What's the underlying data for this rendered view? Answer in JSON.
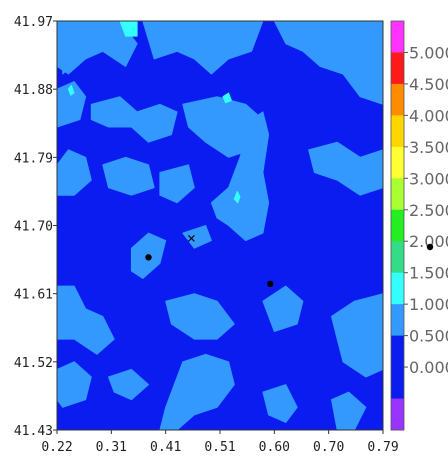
{
  "chart_data": {
    "type": "heatmap",
    "title": "",
    "xlabel": "",
    "ylabel": "",
    "xlim": [
      0.22,
      0.79
    ],
    "ylim": [
      41.43,
      41.97
    ],
    "x_ticks": [
      "0.22",
      "0.31",
      "0.41",
      "0.51",
      "0.60",
      "0.70",
      "0.79"
    ],
    "y_ticks": [
      "41.97",
      "41.88",
      "41.79",
      "41.70",
      "41.61",
      "41.52",
      "41.43"
    ],
    "background_level_color": "#0a1cf0",
    "colorbar": {
      "levels": [
        {
          "label": "5.000",
          "color": "#ff33ff"
        },
        {
          "label": "4.500",
          "color": "#ff1a1a"
        },
        {
          "label": "4.000",
          "color": "#ff8c00"
        },
        {
          "label": "3.500",
          "color": "#ffd700"
        },
        {
          "label": "3.000",
          "color": "#ffff33"
        },
        {
          "label": "2.500",
          "color": "#aaff33"
        },
        {
          "label": "2.000",
          "color": "#22ee22"
        },
        {
          "label": "1.500",
          "color": "#33dd88"
        },
        {
          "label": "1.000",
          "color": "#33ffff"
        },
        {
          "label": "0.500",
          "color": "#3399ff"
        },
        {
          "label": "0.000",
          "color": "#0a1cf0"
        }
      ],
      "bottom_color": "#9933ff",
      "top_color": "#ff33ff"
    },
    "contour_patches": [
      {
        "level": "0.500",
        "color": "#3399ff",
        "points": [
          [
            0.22,
            41.97
          ],
          [
            0.33,
            41.97
          ],
          [
            0.36,
            41.94
          ],
          [
            0.34,
            41.91
          ],
          [
            0.3,
            41.93
          ],
          [
            0.27,
            41.92
          ],
          [
            0.24,
            41.9
          ],
          [
            0.22,
            41.91
          ]
        ]
      },
      {
        "level": "0.500",
        "color": "#3399ff",
        "points": [
          [
            0.37,
            41.97
          ],
          [
            0.58,
            41.97
          ],
          [
            0.56,
            41.93
          ],
          [
            0.52,
            41.92
          ],
          [
            0.49,
            41.9
          ],
          [
            0.46,
            41.92
          ],
          [
            0.43,
            41.93
          ],
          [
            0.39,
            41.92
          ]
        ]
      },
      {
        "level": "0.500",
        "color": "#3399ff",
        "points": [
          [
            0.6,
            41.97
          ],
          [
            0.79,
            41.97
          ],
          [
            0.79,
            41.86
          ],
          [
            0.75,
            41.87
          ],
          [
            0.72,
            41.9
          ],
          [
            0.68,
            41.91
          ],
          [
            0.65,
            41.93
          ],
          [
            0.62,
            41.94
          ]
        ]
      },
      {
        "level": "0.500",
        "color": "#3399ff",
        "points": [
          [
            0.23,
            41.96
          ],
          [
            0.33,
            41.96
          ],
          [
            0.36,
            41.94
          ],
          [
            0.34,
            41.92
          ],
          [
            0.3,
            41.93
          ],
          [
            0.26,
            41.92
          ],
          [
            0.23,
            41.9
          ]
        ]
      },
      {
        "level": "0.500",
        "color": "#3399ff",
        "points": [
          [
            0.22,
            41.88
          ],
          [
            0.25,
            41.89
          ],
          [
            0.27,
            41.87
          ],
          [
            0.26,
            41.84
          ],
          [
            0.22,
            41.83
          ]
        ]
      },
      {
        "level": "0.500",
        "color": "#3399ff",
        "points": [
          [
            0.28,
            41.86
          ],
          [
            0.33,
            41.87
          ],
          [
            0.36,
            41.85
          ],
          [
            0.4,
            41.86
          ],
          [
            0.43,
            41.85
          ],
          [
            0.42,
            41.82
          ],
          [
            0.38,
            41.81
          ],
          [
            0.35,
            41.83
          ],
          [
            0.31,
            41.83
          ],
          [
            0.28,
            41.84
          ]
        ]
      },
      {
        "level": "0.500",
        "color": "#3399ff",
        "points": [
          [
            0.44,
            41.86
          ],
          [
            0.5,
            41.87
          ],
          [
            0.55,
            41.86
          ],
          [
            0.58,
            41.84
          ],
          [
            0.56,
            41.8
          ],
          [
            0.52,
            41.79
          ],
          [
            0.48,
            41.81
          ],
          [
            0.45,
            41.83
          ]
        ]
      },
      {
        "level": "0.500",
        "color": "#3399ff",
        "points": [
          [
            0.22,
            41.78
          ],
          [
            0.24,
            41.8
          ],
          [
            0.27,
            41.79
          ],
          [
            0.28,
            41.76
          ],
          [
            0.25,
            41.74
          ],
          [
            0.22,
            41.74
          ]
        ]
      },
      {
        "level": "0.500",
        "color": "#3399ff",
        "points": [
          [
            0.3,
            41.78
          ],
          [
            0.34,
            41.79
          ],
          [
            0.38,
            41.78
          ],
          [
            0.39,
            41.75
          ],
          [
            0.35,
            41.74
          ],
          [
            0.31,
            41.75
          ]
        ]
      },
      {
        "level": "0.500",
        "color": "#3399ff",
        "points": [
          [
            0.4,
            41.77
          ],
          [
            0.45,
            41.78
          ],
          [
            0.46,
            41.75
          ],
          [
            0.43,
            41.73
          ],
          [
            0.4,
            41.74
          ]
        ]
      },
      {
        "level": "0.500",
        "color": "#3399ff",
        "points": [
          [
            0.49,
            41.73
          ],
          [
            0.52,
            41.75
          ],
          [
            0.54,
            41.79
          ],
          [
            0.56,
            41.84
          ],
          [
            0.58,
            41.85
          ],
          [
            0.59,
            41.82
          ],
          [
            0.58,
            41.77
          ],
          [
            0.59,
            41.73
          ],
          [
            0.58,
            41.69
          ],
          [
            0.55,
            41.68
          ],
          [
            0.52,
            41.7
          ],
          [
            0.5,
            41.71
          ]
        ]
      },
      {
        "level": "0.500",
        "color": "#3399ff",
        "points": [
          [
            0.66,
            41.8
          ],
          [
            0.71,
            41.81
          ],
          [
            0.75,
            41.79
          ],
          [
            0.79,
            41.8
          ],
          [
            0.79,
            41.75
          ],
          [
            0.75,
            41.74
          ],
          [
            0.71,
            41.76
          ],
          [
            0.67,
            41.77
          ]
        ]
      },
      {
        "level": "0.500",
        "color": "#3399ff",
        "points": [
          [
            0.35,
            41.67
          ],
          [
            0.38,
            41.69
          ],
          [
            0.41,
            41.68
          ],
          [
            0.4,
            41.65
          ],
          [
            0.37,
            41.63
          ],
          [
            0.35,
            41.64
          ]
        ]
      },
      {
        "level": "0.500",
        "color": "#3399ff",
        "points": [
          [
            0.44,
            41.69
          ],
          [
            0.48,
            41.7
          ],
          [
            0.49,
            41.68
          ],
          [
            0.46,
            41.67
          ]
        ]
      },
      {
        "level": "0.500",
        "color": "#3399ff",
        "points": [
          [
            0.22,
            41.62
          ],
          [
            0.25,
            41.62
          ],
          [
            0.27,
            41.59
          ],
          [
            0.3,
            41.58
          ],
          [
            0.32,
            41.55
          ],
          [
            0.29,
            41.53
          ],
          [
            0.25,
            41.55
          ],
          [
            0.22,
            41.55
          ]
        ]
      },
      {
        "level": "0.500",
        "color": "#3399ff",
        "points": [
          [
            0.41,
            41.6
          ],
          [
            0.46,
            41.61
          ],
          [
            0.5,
            41.6
          ],
          [
            0.53,
            41.57
          ],
          [
            0.5,
            41.55
          ],
          [
            0.46,
            41.55
          ],
          [
            0.42,
            41.57
          ]
        ]
      },
      {
        "level": "0.500",
        "color": "#3399ff",
        "points": [
          [
            0.58,
            41.6
          ],
          [
            0.62,
            41.62
          ],
          [
            0.65,
            41.6
          ],
          [
            0.64,
            41.57
          ],
          [
            0.6,
            41.56
          ]
        ]
      },
      {
        "level": "0.500",
        "color": "#3399ff",
        "points": [
          [
            0.7,
            41.58
          ],
          [
            0.74,
            41.6
          ],
          [
            0.79,
            41.61
          ],
          [
            0.79,
            41.51
          ],
          [
            0.76,
            41.5
          ],
          [
            0.72,
            41.52
          ],
          [
            0.71,
            41.55
          ]
        ]
      },
      {
        "level": "0.500",
        "color": "#3399ff",
        "points": [
          [
            0.22,
            41.51
          ],
          [
            0.25,
            41.52
          ],
          [
            0.28,
            41.5
          ],
          [
            0.27,
            41.47
          ],
          [
            0.23,
            41.46
          ],
          [
            0.22,
            41.47
          ]
        ]
      },
      {
        "level": "0.500",
        "color": "#3399ff",
        "points": [
          [
            0.31,
            41.5
          ],
          [
            0.35,
            41.51
          ],
          [
            0.38,
            41.49
          ],
          [
            0.35,
            41.47
          ],
          [
            0.32,
            41.48
          ]
        ]
      },
      {
        "level": "0.500",
        "color": "#3399ff",
        "points": [
          [
            0.44,
            41.52
          ],
          [
            0.48,
            41.53
          ],
          [
            0.52,
            41.52
          ],
          [
            0.53,
            41.49
          ],
          [
            0.5,
            41.46
          ],
          [
            0.46,
            41.45
          ],
          [
            0.43,
            41.43
          ],
          [
            0.4,
            41.43
          ],
          [
            0.41,
            41.46
          ]
        ]
      },
      {
        "level": "0.500",
        "color": "#3399ff",
        "points": [
          [
            0.58,
            41.48
          ],
          [
            0.62,
            41.49
          ],
          [
            0.64,
            41.46
          ],
          [
            0.62,
            41.44
          ],
          [
            0.59,
            41.45
          ]
        ]
      },
      {
        "level": "0.500",
        "color": "#3399ff",
        "points": [
          [
            0.7,
            41.47
          ],
          [
            0.73,
            41.48
          ],
          [
            0.76,
            41.46
          ],
          [
            0.74,
            41.43
          ],
          [
            0.71,
            41.43
          ]
        ]
      },
      {
        "level": "1.000",
        "color": "#33ffff",
        "points": [
          [
            0.33,
            41.97
          ],
          [
            0.36,
            41.97
          ],
          [
            0.36,
            41.95
          ],
          [
            0.34,
            41.95
          ]
        ]
      },
      {
        "level": "1.000",
        "color": "#33ffff",
        "points": [
          [
            0.51,
            41.87
          ],
          [
            0.52,
            41.875
          ],
          [
            0.525,
            41.865
          ],
          [
            0.515,
            41.862
          ]
        ]
      },
      {
        "level": "1.000",
        "color": "#33ffff",
        "points": [
          [
            0.24,
            41.88
          ],
          [
            0.245,
            41.885
          ],
          [
            0.25,
            41.875
          ],
          [
            0.244,
            41.872
          ]
        ]
      },
      {
        "level": "1.000",
        "color": "#33ffff",
        "points": [
          [
            0.53,
            41.735
          ],
          [
            0.535,
            41.745
          ],
          [
            0.54,
            41.738
          ],
          [
            0.536,
            41.73
          ]
        ]
      }
    ],
    "markers": [
      {
        "symbol": "dot",
        "x": 0.38,
        "y": 41.658
      },
      {
        "symbol": "dot",
        "x": 0.593,
        "y": 41.623
      },
      {
        "symbol": "x",
        "x": 0.455,
        "y": 41.683
      }
    ],
    "outside_marker": {
      "symbol": "dot"
    }
  }
}
